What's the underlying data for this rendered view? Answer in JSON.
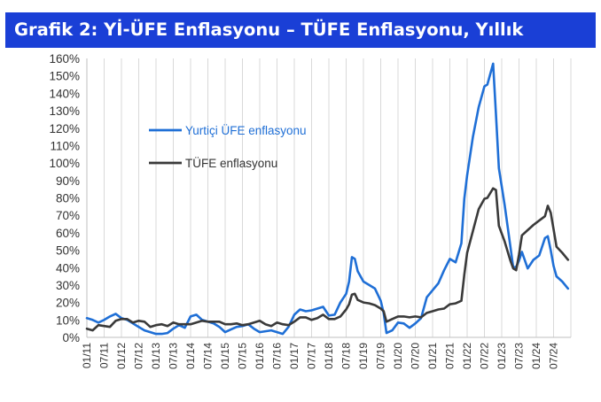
{
  "header": {
    "title": "Grafik 2: Yİ-ÜFE Enflasyonu – TÜFE Enflasyonu, Yıllık"
  },
  "chart_data": {
    "type": "line",
    "title": "Grafik 2: Yİ-ÜFE Enflasyonu – TÜFE Enflasyonu, Yıllık",
    "xlabel": "",
    "ylabel": "",
    "ylim": [
      0,
      160
    ],
    "y_ticks": [
      0,
      10,
      20,
      30,
      40,
      50,
      60,
      70,
      80,
      90,
      100,
      110,
      120,
      130,
      140,
      150,
      160
    ],
    "y_tick_labels": [
      "0%",
      "10%",
      "20%",
      "30%",
      "40%",
      "50%",
      "60%",
      "70%",
      "80%",
      "90%",
      "100%",
      "110%",
      "120%",
      "130%",
      "140%",
      "150%",
      "160%"
    ],
    "x_range": [
      "2011-01",
      "2024-12"
    ],
    "x_tick_labels": [
      "01/11",
      "07/11",
      "01/12",
      "07/12",
      "01/13",
      "07/13",
      "01/14",
      "07/14",
      "01/15",
      "07/15",
      "01/16",
      "07/16",
      "01/17",
      "07/17",
      "01/18",
      "07/18",
      "01/19",
      "07/19",
      "01/20",
      "07/20",
      "01/21",
      "07/21",
      "01/22",
      "07/22",
      "01/23",
      "07/23",
      "01/24",
      "07/24"
    ],
    "grid": "vertical",
    "legend_position": "upper-left",
    "series": [
      {
        "name": "Yurtiçi ÜFE enflasyonu",
        "color": "#1f6fd6",
        "points": [
          [
            "2011-01",
            11
          ],
          [
            "2011-03",
            10
          ],
          [
            "2011-05",
            8.5
          ],
          [
            "2011-07",
            10
          ],
          [
            "2011-09",
            12
          ],
          [
            "2011-11",
            13.5
          ],
          [
            "2012-01",
            11
          ],
          [
            "2012-03",
            10
          ],
          [
            "2012-05",
            8
          ],
          [
            "2012-07",
            6
          ],
          [
            "2012-09",
            4
          ],
          [
            "2012-11",
            3
          ],
          [
            "2013-01",
            2
          ],
          [
            "2013-03",
            2
          ],
          [
            "2013-05",
            2.5
          ],
          [
            "2013-07",
            5
          ],
          [
            "2013-09",
            7
          ],
          [
            "2013-11",
            5.5
          ],
          [
            "2014-01",
            12
          ],
          [
            "2014-03",
            13
          ],
          [
            "2014-05",
            10
          ],
          [
            "2014-07",
            9
          ],
          [
            "2014-09",
            8
          ],
          [
            "2014-11",
            6
          ],
          [
            "2015-01",
            3
          ],
          [
            "2015-03",
            4.5
          ],
          [
            "2015-05",
            6
          ],
          [
            "2015-07",
            6.5
          ],
          [
            "2015-09",
            7.5
          ],
          [
            "2015-11",
            5
          ],
          [
            "2016-01",
            3
          ],
          [
            "2016-03",
            3.5
          ],
          [
            "2016-05",
            4
          ],
          [
            "2016-07",
            3
          ],
          [
            "2016-09",
            2
          ],
          [
            "2016-11",
            6
          ],
          [
            "2017-01",
            13
          ],
          [
            "2017-03",
            16
          ],
          [
            "2017-05",
            15
          ],
          [
            "2017-07",
            15.5
          ],
          [
            "2017-09",
            16.5
          ],
          [
            "2017-11",
            17.5
          ],
          [
            "2018-01",
            12.5
          ],
          [
            "2018-03",
            13
          ],
          [
            "2018-05",
            20
          ],
          [
            "2018-07",
            25
          ],
          [
            "2018-08",
            32
          ],
          [
            "2018-09",
            46
          ],
          [
            "2018-10",
            45
          ],
          [
            "2018-11",
            38
          ],
          [
            "2019-01",
            32
          ],
          [
            "2019-03",
            30
          ],
          [
            "2019-05",
            28
          ],
          [
            "2019-07",
            21
          ],
          [
            "2019-08",
            14
          ],
          [
            "2019-09",
            2.5
          ],
          [
            "2019-11",
            4
          ],
          [
            "2020-01",
            8.5
          ],
          [
            "2020-03",
            8
          ],
          [
            "2020-05",
            5.5
          ],
          [
            "2020-07",
            8
          ],
          [
            "2020-09",
            11
          ],
          [
            "2020-11",
            23
          ],
          [
            "2021-01",
            27
          ],
          [
            "2021-03",
            31
          ],
          [
            "2021-05",
            38.5
          ],
          [
            "2021-07",
            45
          ],
          [
            "2021-09",
            43
          ],
          [
            "2021-11",
            54
          ],
          [
            "2021-12",
            79.5
          ],
          [
            "2022-01",
            93
          ],
          [
            "2022-03",
            115
          ],
          [
            "2022-05",
            132
          ],
          [
            "2022-07",
            144
          ],
          [
            "2022-08",
            145
          ],
          [
            "2022-10",
            157
          ],
          [
            "2022-11",
            128
          ],
          [
            "2022-12",
            97
          ],
          [
            "2023-02",
            76
          ],
          [
            "2023-04",
            52
          ],
          [
            "2023-05",
            40
          ],
          [
            "2023-06",
            40.5
          ],
          [
            "2023-07",
            44
          ],
          [
            "2023-08",
            49
          ],
          [
            "2023-10",
            39.5
          ],
          [
            "2023-12",
            44.5
          ],
          [
            "2024-02",
            47
          ],
          [
            "2024-04",
            57
          ],
          [
            "2024-05",
            58
          ],
          [
            "2024-06",
            50
          ],
          [
            "2024-07",
            41
          ],
          [
            "2024-08",
            35
          ],
          [
            "2024-10",
            32
          ],
          [
            "2024-12",
            28
          ]
        ]
      },
      {
        "name": "TÜFE enflasyonu",
        "color": "#3a3a3a",
        "points": [
          [
            "2011-01",
            5
          ],
          [
            "2011-03",
            4
          ],
          [
            "2011-05",
            7
          ],
          [
            "2011-07",
            6.5
          ],
          [
            "2011-09",
            6
          ],
          [
            "2011-11",
            9.5
          ],
          [
            "2012-01",
            10.5
          ],
          [
            "2012-03",
            10.5
          ],
          [
            "2012-05",
            8.5
          ],
          [
            "2012-07",
            9.5
          ],
          [
            "2012-09",
            9
          ],
          [
            "2012-11",
            6
          ],
          [
            "2013-01",
            7
          ],
          [
            "2013-03",
            7.5
          ],
          [
            "2013-05",
            6.5
          ],
          [
            "2013-07",
            8.5
          ],
          [
            "2013-09",
            7.5
          ],
          [
            "2013-11",
            7.5
          ],
          [
            "2014-01",
            7.5
          ],
          [
            "2014-03",
            8.5
          ],
          [
            "2014-05",
            9.5
          ],
          [
            "2014-07",
            9
          ],
          [
            "2014-09",
            9
          ],
          [
            "2014-11",
            9
          ],
          [
            "2015-01",
            7.5
          ],
          [
            "2015-03",
            7.5
          ],
          [
            "2015-05",
            8
          ],
          [
            "2015-07",
            7
          ],
          [
            "2015-09",
            7.5
          ],
          [
            "2015-11",
            8.5
          ],
          [
            "2016-01",
            9.5
          ],
          [
            "2016-03",
            7.5
          ],
          [
            "2016-05",
            6.5
          ],
          [
            "2016-07",
            8.5
          ],
          [
            "2016-09",
            7.5
          ],
          [
            "2016-11",
            7
          ],
          [
            "2017-01",
            9
          ],
          [
            "2017-03",
            11.5
          ],
          [
            "2017-05",
            11.5
          ],
          [
            "2017-07",
            10
          ],
          [
            "2017-09",
            11
          ],
          [
            "2017-11",
            13
          ],
          [
            "2018-01",
            10.5
          ],
          [
            "2018-03",
            10.5
          ],
          [
            "2018-05",
            12
          ],
          [
            "2018-07",
            16
          ],
          [
            "2018-08",
            19
          ],
          [
            "2018-09",
            24.5
          ],
          [
            "2018-10",
            25
          ],
          [
            "2018-11",
            21.5
          ],
          [
            "2019-01",
            20
          ],
          [
            "2019-03",
            19.5
          ],
          [
            "2019-05",
            18.5
          ],
          [
            "2019-07",
            16.5
          ],
          [
            "2019-08",
            15
          ],
          [
            "2019-09",
            9
          ],
          [
            "2019-11",
            10.5
          ],
          [
            "2020-01",
            12
          ],
          [
            "2020-03",
            12
          ],
          [
            "2020-05",
            11.5
          ],
          [
            "2020-07",
            12
          ],
          [
            "2020-09",
            11.5
          ],
          [
            "2020-11",
            14
          ],
          [
            "2021-01",
            15
          ],
          [
            "2021-03",
            16
          ],
          [
            "2021-05",
            16.5
          ],
          [
            "2021-07",
            19
          ],
          [
            "2021-09",
            19.5
          ],
          [
            "2021-11",
            21
          ],
          [
            "2021-12",
            36
          ],
          [
            "2022-01",
            48.5
          ],
          [
            "2022-03",
            61
          ],
          [
            "2022-05",
            73.5
          ],
          [
            "2022-07",
            79.5
          ],
          [
            "2022-08",
            80
          ],
          [
            "2022-10",
            85.5
          ],
          [
            "2022-11",
            84.5
          ],
          [
            "2022-12",
            64
          ],
          [
            "2023-02",
            55
          ],
          [
            "2023-04",
            44
          ],
          [
            "2023-05",
            39.5
          ],
          [
            "2023-06",
            38.5
          ],
          [
            "2023-07",
            47.5
          ],
          [
            "2023-08",
            58.5
          ],
          [
            "2023-10",
            61.5
          ],
          [
            "2023-12",
            64.5
          ],
          [
            "2024-02",
            67
          ],
          [
            "2024-04",
            69.5
          ],
          [
            "2024-05",
            75.5
          ],
          [
            "2024-06",
            71.5
          ],
          [
            "2024-07",
            62
          ],
          [
            "2024-08",
            52
          ],
          [
            "2024-10",
            48.5
          ],
          [
            "2024-12",
            44.5
          ]
        ]
      }
    ]
  }
}
